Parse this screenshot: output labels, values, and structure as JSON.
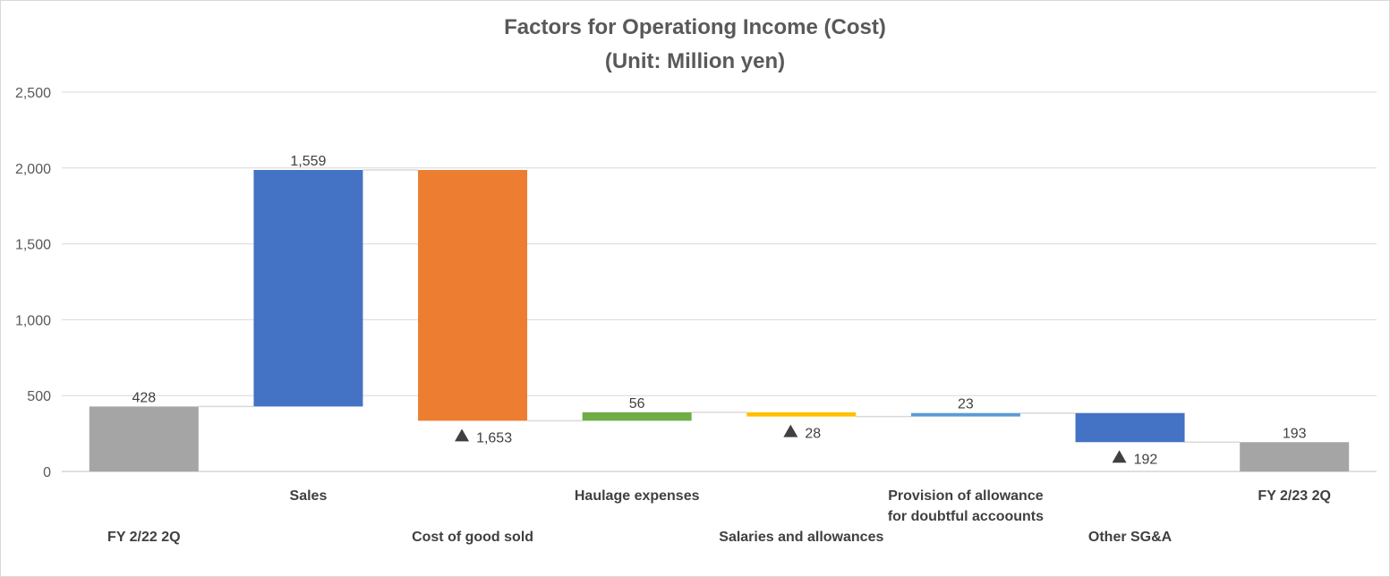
{
  "chart_data": {
    "type": "bar",
    "subtype": "waterfall",
    "title": "Factors for Operationg Income (Cost)",
    "subtitle": "(Unit: Million yen)",
    "xlabel": "",
    "ylabel": "",
    "ylim": [
      0,
      2500
    ],
    "yticks": [
      0,
      500,
      1000,
      1500,
      2000,
      2500
    ],
    "ytick_labels": [
      "0",
      "500",
      "1,000",
      "1,500",
      "2,000",
      "2,500"
    ],
    "grid": true,
    "legend": "none",
    "negative_marker": "▲",
    "categories": [
      {
        "label": [
          "FY 2/22 2Q"
        ],
        "value": 428,
        "kind": "total",
        "display": "428",
        "color": "#a5a5a5"
      },
      {
        "label": [
          "Sales"
        ],
        "value": 1559,
        "kind": "delta",
        "display": "1,559",
        "color": "#4472c4"
      },
      {
        "label": [
          "Cost of good sold"
        ],
        "value": -1653,
        "kind": "delta",
        "display": "1,653",
        "color": "#ed7d31"
      },
      {
        "label": [
          "Haulage expenses"
        ],
        "value": 56,
        "kind": "delta",
        "display": "56",
        "color": "#70ad47"
      },
      {
        "label": [
          "Salaries and allowances"
        ],
        "value": -28,
        "kind": "delta",
        "display": "28",
        "color": "#ffc000"
      },
      {
        "label": [
          "Provision of allowance",
          "for doubtful accoounts"
        ],
        "value": 23,
        "kind": "delta",
        "display": "23",
        "color": "#5b9bd5"
      },
      {
        "label": [
          "Other SG&A"
        ],
        "value": -192,
        "kind": "delta",
        "display": "192",
        "color": "#4472c4"
      },
      {
        "label": [
          "FY 2/23 2Q"
        ],
        "value": 193,
        "kind": "total",
        "display": "193",
        "color": "#a5a5a5"
      }
    ]
  }
}
